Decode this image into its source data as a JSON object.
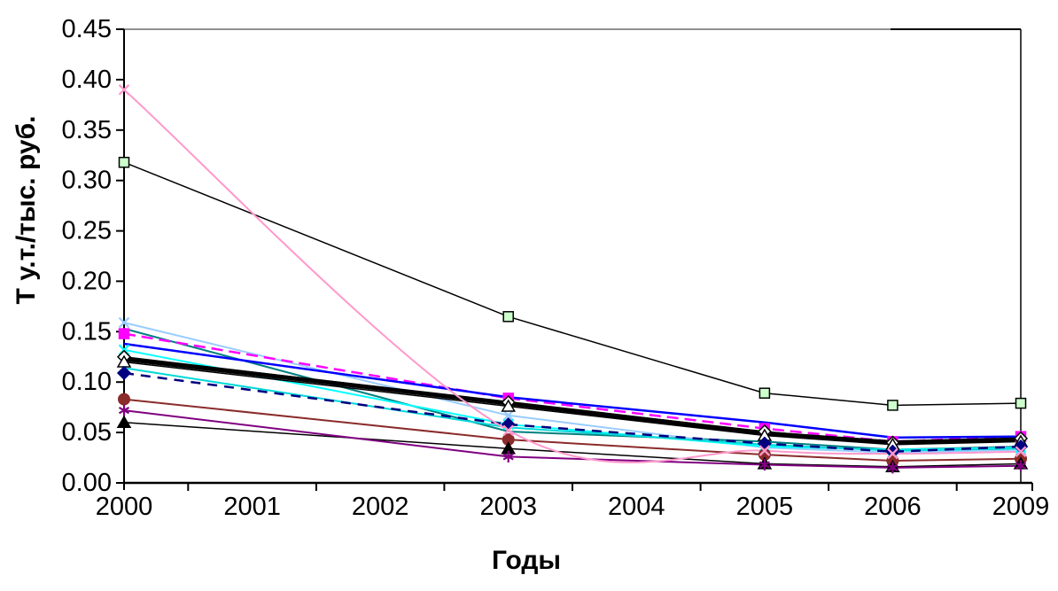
{
  "chart_data": {
    "type": "line",
    "title": "",
    "xlabel": "Годы",
    "ylabel": "Т у.т./тыс. руб.",
    "x_categories": [
      "2000",
      "2001",
      "2002",
      "2003",
      "2004",
      "2005",
      "2006",
      "2009"
    ],
    "data_x": [
      "2000",
      "2003",
      "2005",
      "2006",
      "2009"
    ],
    "y_ticks": [
      "0.00",
      "0.05",
      "0.10",
      "0.15",
      "0.20",
      "0.25",
      "0.30",
      "0.35",
      "0.40",
      "0.45"
    ],
    "ylim": [
      0,
      0.45
    ],
    "grid": false,
    "legend": "none",
    "series": [
      {
        "name": "black-line-green-square",
        "color": "#000000",
        "width": 1.5,
        "dash": "",
        "marker": "square",
        "marker_fill": "#CCFFCC",
        "marker_stroke": "#000000",
        "smooth": false,
        "values": [
          0.318,
          0.165,
          0.089,
          0.077,
          0.079
        ]
      },
      {
        "name": "teal-line",
        "color": "#008080",
        "width": 2,
        "dash": "",
        "marker": "none",
        "marker_fill": "",
        "marker_stroke": "",
        "smooth": false,
        "values": [
          0.153,
          0.051,
          0.041,
          0.033,
          0.036
        ]
      },
      {
        "name": "light-blue-x",
        "color": "#99CCFF",
        "width": 2,
        "dash": "",
        "marker": "x",
        "marker_fill": "",
        "marker_stroke": "",
        "smooth": false,
        "values": [
          0.159,
          0.067,
          0.035,
          0.03,
          0.033
        ]
      },
      {
        "name": "magenta-dashed-square",
        "color": "#FF00FF",
        "width": 2.5,
        "dash": "13 7",
        "marker": "square",
        "marker_fill": "#FF00FF",
        "marker_stroke": "#FF00FF",
        "smooth": false,
        "values": [
          0.148,
          0.084,
          0.054,
          0.041,
          0.046
        ]
      },
      {
        "name": "blue-line",
        "color": "#0000FF",
        "width": 2.5,
        "dash": "",
        "marker": "none",
        "marker_fill": "",
        "marker_stroke": "",
        "smooth": false,
        "values": [
          0.138,
          0.085,
          0.06,
          0.045,
          0.046
        ]
      },
      {
        "name": "cyan-x",
        "color": "#00FFFF",
        "width": 2,
        "dash": "",
        "marker": "x",
        "marker_fill": "",
        "marker_stroke": "",
        "smooth": false,
        "values": [
          0.132,
          0.058,
          0.036,
          0.033,
          0.035
        ]
      },
      {
        "name": "cyan-line-2",
        "color": "#00D9D9",
        "width": 2,
        "dash": "",
        "marker": "none",
        "marker_fill": "",
        "marker_stroke": "",
        "smooth": false,
        "values": [
          0.114,
          0.055,
          0.038,
          0.032,
          0.034
        ]
      },
      {
        "name": "black-line-open-diamond",
        "color": "#000000",
        "width": 1.5,
        "dash": "",
        "marker": "diamond",
        "marker_fill": "#FFFFFF",
        "marker_stroke": "#000000",
        "smooth": false,
        "values": [
          0.125,
          0.08,
          0.051,
          0.04,
          0.044
        ]
      },
      {
        "name": "black-line-open-triangle",
        "color": "#000000",
        "width": 1.5,
        "dash": "",
        "marker": "triangle",
        "marker_fill": "#FFFFFF",
        "marker_stroke": "#000000",
        "smooth": false,
        "values": [
          0.12,
          0.076,
          0.047,
          0.038,
          0.041
        ]
      },
      {
        "name": "navy-dashed-diamond",
        "color": "#000080",
        "width": 2.5,
        "dash": "11 8",
        "marker": "diamond",
        "marker_fill": "#000080",
        "marker_stroke": "#000080",
        "smooth": false,
        "values": [
          0.109,
          0.058,
          0.039,
          0.031,
          0.036
        ]
      },
      {
        "name": "dark-red-circle",
        "color": "#8B2B2B",
        "width": 2,
        "dash": "",
        "marker": "circle",
        "marker_fill": "#8B2B2B",
        "marker_stroke": "#8B2B2B",
        "smooth": false,
        "values": [
          0.083,
          0.043,
          0.028,
          0.022,
          0.024
        ]
      },
      {
        "name": "black-filled-triangle",
        "color": "#000000",
        "width": 1.5,
        "dash": "",
        "marker": "triangle",
        "marker_fill": "#000000",
        "marker_stroke": "#000000",
        "smooth": false,
        "values": [
          0.06,
          0.034,
          0.019,
          0.016,
          0.019
        ]
      },
      {
        "name": "purple-asterisk",
        "color": "#800080",
        "width": 2,
        "dash": "",
        "marker": "asterisk",
        "marker_fill": "",
        "marker_stroke": "",
        "smooth": false,
        "values": [
          0.072,
          0.026,
          0.018,
          0.015,
          0.017
        ]
      },
      {
        "name": "thick-black-line",
        "color": "#000000",
        "width": 5,
        "dash": "",
        "marker": "none",
        "marker_fill": "",
        "marker_stroke": "",
        "smooth": false,
        "values": [
          0.123,
          0.079,
          0.049,
          0.04,
          0.043
        ]
      },
      {
        "name": "pink-smooth-x",
        "color": "#FF99CC",
        "width": 2,
        "dash": "",
        "marker": "x",
        "marker_fill": "",
        "marker_stroke": "",
        "smooth": true,
        "values": [
          0.39,
          0.052,
          0.032,
          0.029,
          0.031
        ]
      }
    ]
  }
}
